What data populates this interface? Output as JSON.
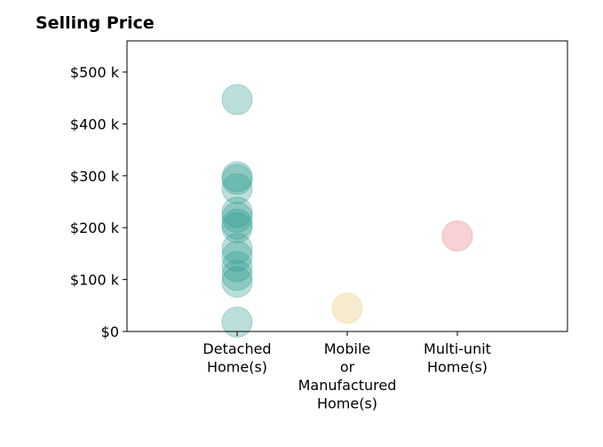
{
  "chart_data": {
    "type": "scatter",
    "title": "Selling Price",
    "xlabel": "",
    "ylabel": "",
    "categories": [
      [
        "Detached",
        "Home(s)"
      ],
      [
        "Mobile",
        "or",
        "Manufactured",
        "Home(s)"
      ],
      [
        "Multi-unit",
        "Home(s)"
      ]
    ],
    "ylim": [
      0,
      560000
    ],
    "y_ticks": [
      {
        "value": 0,
        "label": "$0"
      },
      {
        "value": 100000,
        "label": "$100 k"
      },
      {
        "value": 200000,
        "label": "$200 k"
      },
      {
        "value": 300000,
        "label": "$300 k"
      },
      {
        "value": 400000,
        "label": "$400 k"
      },
      {
        "value": 500000,
        "label": "$500 k"
      }
    ],
    "grid": false,
    "series": [
      {
        "category_index": 0,
        "color": "#2a9d8f",
        "values": [
          447000,
          298000,
          293000,
          275000,
          230000,
          220000,
          207000,
          200000,
          160000,
          145000,
          125000,
          108000,
          95000,
          18000
        ]
      },
      {
        "category_index": 1,
        "color": "#e9c46a",
        "values": [
          45000
        ]
      },
      {
        "category_index": 2,
        "color": "#e76f7a",
        "values": [
          184000
        ]
      }
    ]
  }
}
